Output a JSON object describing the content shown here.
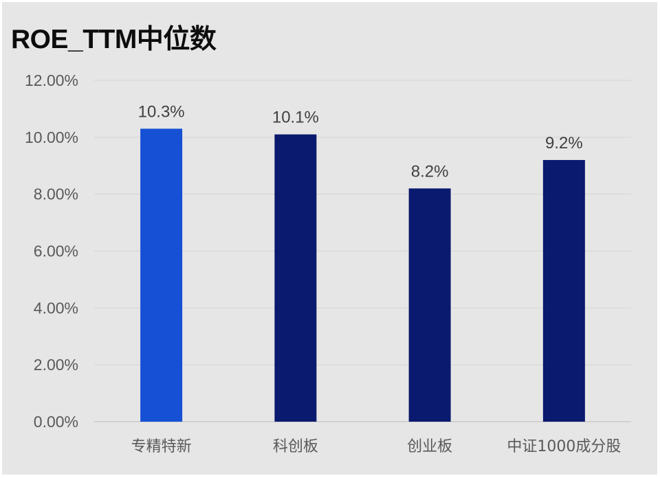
{
  "chart_data": {
    "type": "bar",
    "title": "ROE_TTM中位数",
    "categories": [
      "专精特新",
      "科创板",
      "创业板",
      "中证1000成分股"
    ],
    "values": [
      10.3,
      10.1,
      8.2,
      9.2
    ],
    "data_labels": [
      "10.3%",
      "10.1%",
      "8.2%",
      "9.2%"
    ],
    "bar_colors": [
      "#1650d4",
      "#0a1a6e",
      "#0a1a6e",
      "#0a1a6e"
    ],
    "ylim": [
      0,
      12
    ],
    "yticks": [
      0,
      2,
      4,
      6,
      8,
      10,
      12
    ],
    "ytick_labels": [
      "0.00%",
      "2.00%",
      "4.00%",
      "6.00%",
      "8.00%",
      "10.00%",
      "12.00%"
    ],
    "grid": true,
    "legend": "none",
    "xlabel": "",
    "ylabel": ""
  }
}
